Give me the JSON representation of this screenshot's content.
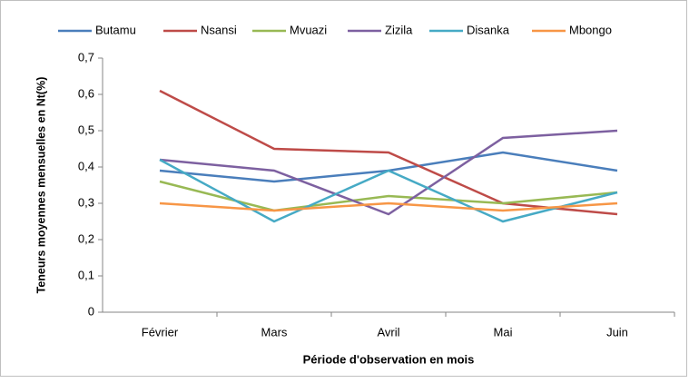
{
  "chart_data": {
    "type": "line",
    "categories": [
      "Février",
      "Mars",
      "Avril",
      "Mai",
      "Juin"
    ],
    "series": [
      {
        "name": "Butamu",
        "color": "#4a7ebb",
        "values": [
          0.39,
          0.36,
          0.39,
          0.44,
          0.39
        ]
      },
      {
        "name": "Nsansi",
        "color": "#be4b48",
        "values": [
          0.61,
          0.45,
          0.44,
          0.3,
          0.27
        ]
      },
      {
        "name": "Mvuazi",
        "color": "#98b954",
        "values": [
          0.36,
          0.28,
          0.32,
          0.3,
          0.33
        ]
      },
      {
        "name": "Zizila",
        "color": "#7d60a0",
        "values": [
          0.42,
          0.39,
          0.27,
          0.48,
          0.5
        ]
      },
      {
        "name": "Disanka",
        "color": "#46aac5",
        "values": [
          0.42,
          0.25,
          0.39,
          0.25,
          0.33
        ]
      },
      {
        "name": "Mbongo",
        "color": "#f79646",
        "values": [
          0.3,
          0.28,
          0.3,
          0.28,
          0.3
        ]
      }
    ],
    "x_label": "Période d'observation en mois",
    "y_label": "Teneurs moyennes mensuelles en Nt(%)",
    "ylim": [
      0,
      0.7
    ],
    "yticks": [
      0,
      {
        "value": 0.1,
        "label": "0,1"
      },
      {
        "value": 0.2,
        "label": "0,2"
      },
      {
        "value": 0.3,
        "label": "0,3"
      },
      {
        "value": 0.4,
        "label": "0,4"
      },
      {
        "value": 0.5,
        "label": "0,5"
      },
      {
        "value": 0.6,
        "label": "0,6"
      },
      {
        "value": 0.7,
        "label": "0,7"
      }
    ],
    "grid": false,
    "legend": "top"
  }
}
